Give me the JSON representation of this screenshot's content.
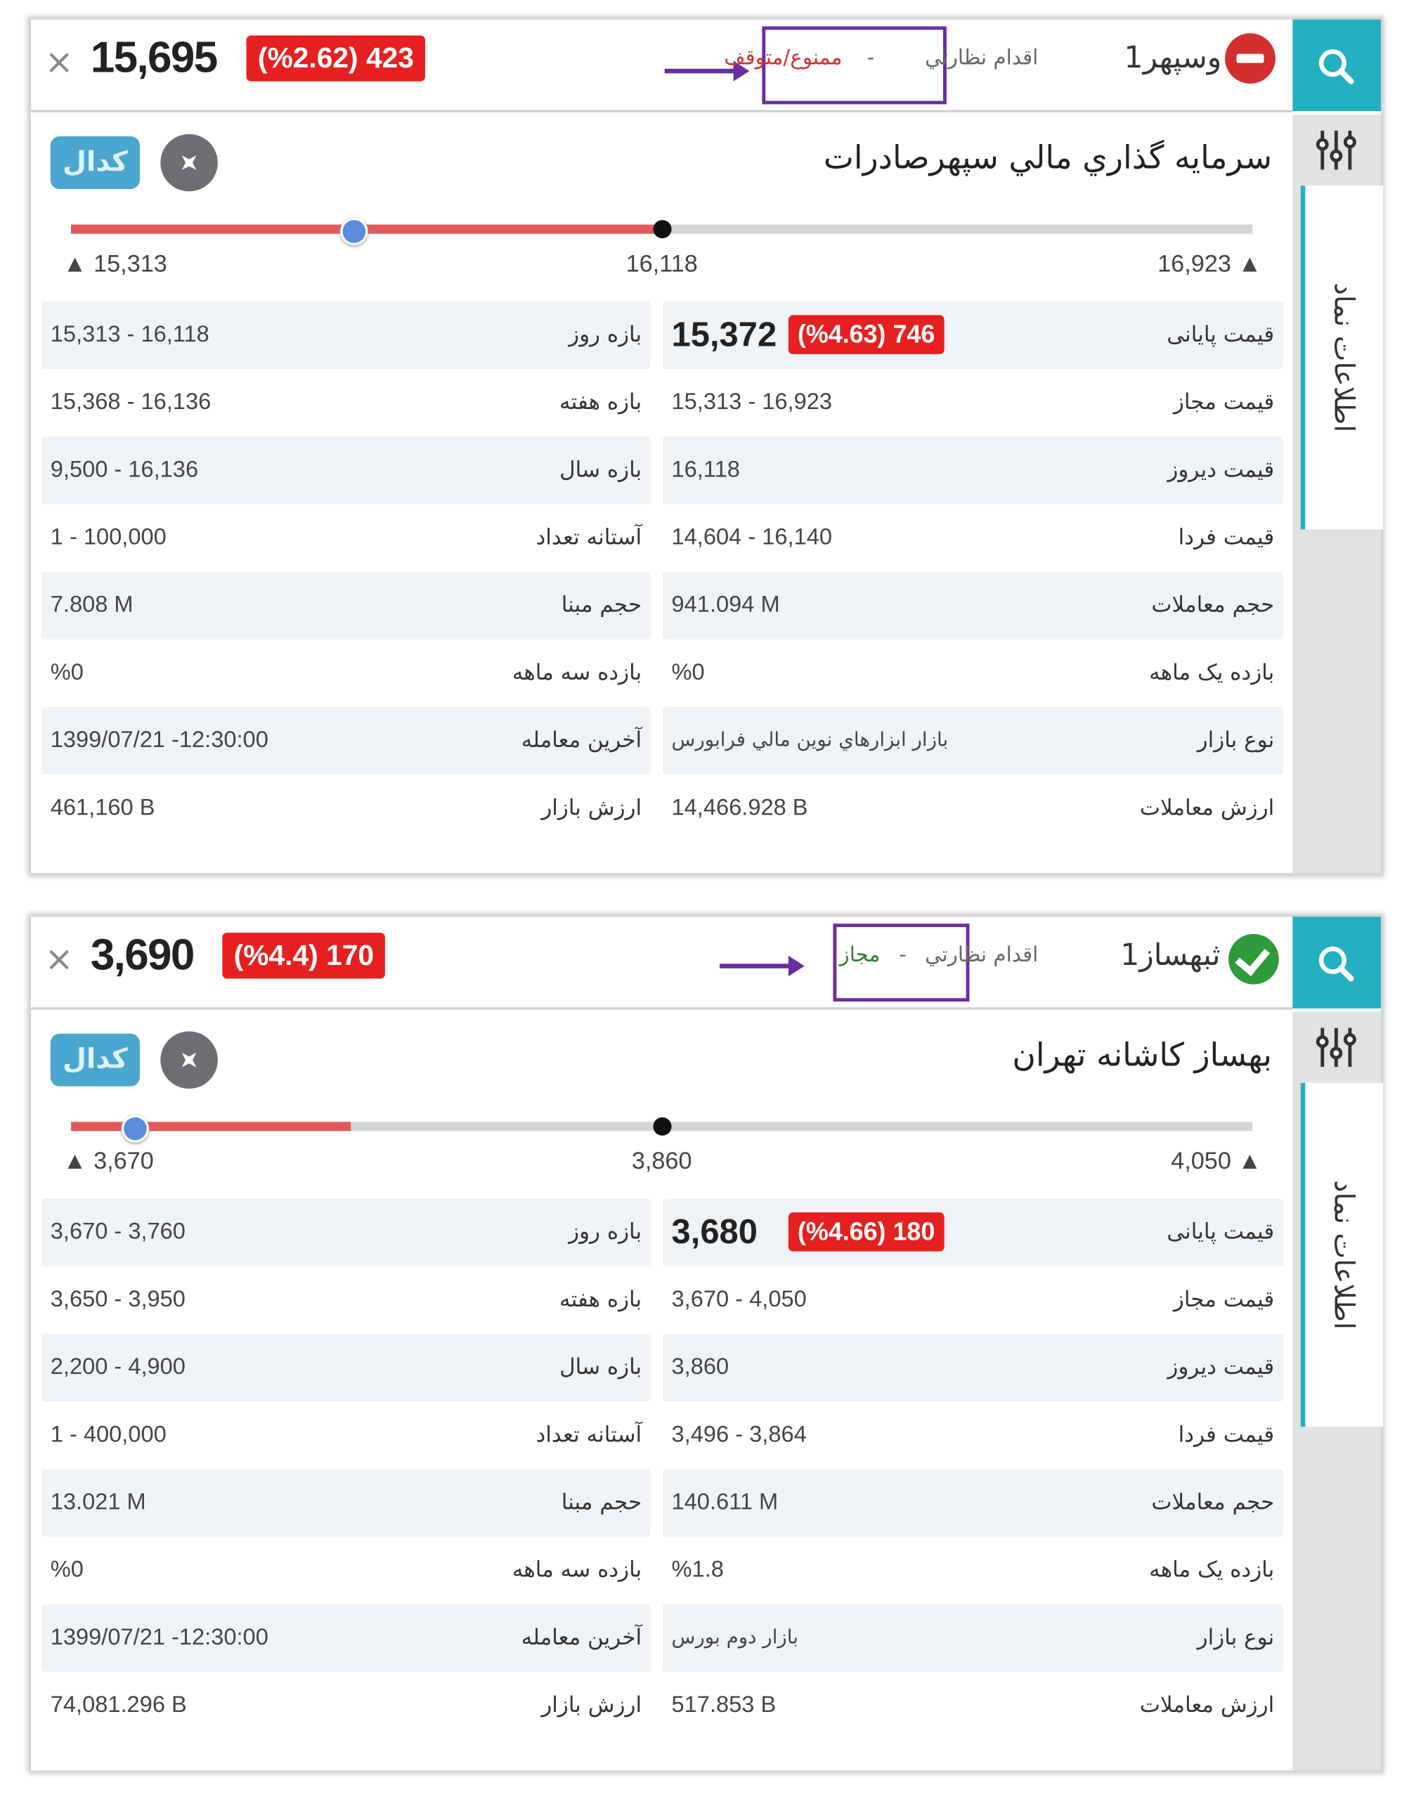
{
  "colors": {
    "accent": "#23b0c0",
    "negative": "#e62020",
    "highlight": "#6a2ea0",
    "stopped": "#d32f2f",
    "allowed": "#2e7d32"
  },
  "cards": [
    {
      "header": {
        "close": "×",
        "price": "15,695",
        "change": "(%2.62) 423",
        "symbol": "وسپهر1",
        "supervision": "اقدام نظارتي",
        "separator": "-",
        "status": "ممنوع/متوقف",
        "status_type": "stopped",
        "status_icon": "minus-circle-icon"
      },
      "title": "سرمايه گذاري مالي سپهرصادرات",
      "codal": "کدال",
      "side_tab": "اطلاعات نماد",
      "slider": {
        "min": 15313,
        "max": 16923,
        "yesterday": 16118,
        "current": 15695,
        "day_low": 15313,
        "day_high": 16118,
        "min_label": "15,313",
        "mid_label": "16,118",
        "max_label": "16,923"
      },
      "right_rows": [
        {
          "label": "قیمت پایانی",
          "value": "15,372",
          "change": "(%4.63) 746"
        },
        {
          "label": "قیمت مجاز",
          "value": "15,313 - 16,923"
        },
        {
          "label": "قیمت دیروز",
          "value": "16,118"
        },
        {
          "label": "قیمت فردا",
          "value": "14,604 - 16,140"
        },
        {
          "label": "حجم معاملات",
          "value": "941.094 M"
        },
        {
          "label": "بازده یک ماهه",
          "value": "%0"
        },
        {
          "label": "نوع بازار",
          "value": "بازار ابزارهاي نوين مالي فرابورس"
        },
        {
          "label": "ارزش معاملات",
          "value": "14,466.928 B"
        }
      ],
      "left_rows": [
        {
          "label": "بازه روز",
          "value": "15,313 - 16,118"
        },
        {
          "label": "بازه هفته",
          "value": "15,368 - 16,136"
        },
        {
          "label": "بازه سال",
          "value": "9,500 - 16,136"
        },
        {
          "label": "آستانه تعداد",
          "value": "1 - 100,000"
        },
        {
          "label": "حجم مبنا",
          "value": "7.808 M"
        },
        {
          "label": "بازده سه ماهه",
          "value": "%0"
        },
        {
          "label": "آخرین معامله",
          "value": "1399/07/21 -12:30:00"
        },
        {
          "label": "ارزش بازار",
          "value": "461,160 B"
        }
      ]
    },
    {
      "header": {
        "close": "×",
        "price": "3,690",
        "change": "(%4.4) 170",
        "symbol": "ثبهساز1",
        "supervision": "اقدام نظارتي",
        "separator": "-",
        "status": "مجاز",
        "status_type": "allowed",
        "status_icon": "check-circle-icon"
      },
      "title": "بهساز کاشانه تهران",
      "codal": "کدال",
      "side_tab": "اطلاعات نماد",
      "slider": {
        "min": 3670,
        "max": 4050,
        "yesterday": 3860,
        "current": 3690,
        "day_low": 3670,
        "day_high": 3760,
        "min_label": "3,670",
        "mid_label": "3,860",
        "max_label": "4,050"
      },
      "right_rows": [
        {
          "label": "قیمت پایانی",
          "value": "3,680",
          "change": "(%4.66) 180"
        },
        {
          "label": "قیمت مجاز",
          "value": "3,670 - 4,050"
        },
        {
          "label": "قیمت دیروز",
          "value": "3,860"
        },
        {
          "label": "قیمت فردا",
          "value": "3,496 - 3,864"
        },
        {
          "label": "حجم معاملات",
          "value": "140.611 M"
        },
        {
          "label": "بازده یک ماهه",
          "value": "%1.8"
        },
        {
          "label": "نوع بازار",
          "value": "بازار دوم بورس"
        },
        {
          "label": "ارزش معاملات",
          "value": "517.853 B"
        }
      ],
      "left_rows": [
        {
          "label": "بازه روز",
          "value": "3,670 - 3,760"
        },
        {
          "label": "بازه هفته",
          "value": "3,650 - 3,950"
        },
        {
          "label": "بازه سال",
          "value": "2,200 - 4,900"
        },
        {
          "label": "آستانه تعداد",
          "value": "1 - 400,000"
        },
        {
          "label": "حجم مبنا",
          "value": "13.021 M"
        },
        {
          "label": "بازده سه ماهه",
          "value": "%0"
        },
        {
          "label": "آخرین معامله",
          "value": "1399/07/21 -12:30:00"
        },
        {
          "label": "ارزش بازار",
          "value": "74,081.296 B"
        }
      ]
    }
  ]
}
